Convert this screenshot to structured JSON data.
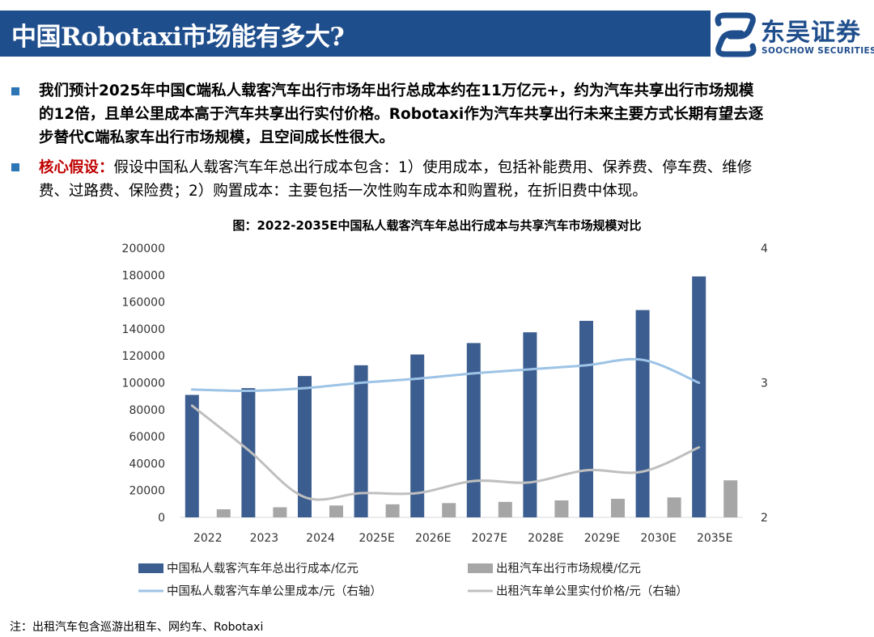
{
  "header": {
    "title": "中国Robotaxi市场能有多大?",
    "logo_cn": "东吴证券",
    "logo_en": "SOOCHOW SECURITIES",
    "bar_color": "#1f4e8c"
  },
  "bullets": [
    {
      "lines": [
        "我们预计2025年中国C端私人载客汽车出行市场年出行总成本约在11万亿元+，约为汽车共享出行市场规模",
        "的12倍，且单公里成本高于汽车共享出行实付价格。Robotaxi作为汽车共享出行未来主要方式长期有望去逐",
        "步替代C端私家车出行市场规模，且空间成长性很大。"
      ]
    },
    {
      "label": "核心假设：",
      "line1": "假设中国私人载客汽车年总出行成本包含：1）使用成本，包括补能费用、保养费、停车费、维修",
      "line2": "费、过路费、保险费；2）购置成本：主要包括一次性购车成本和购置税，在折旧费中体现。"
    }
  ],
  "chart_title": "图：2022-2035E中国私人载客汽车年总出行成本与共享汽车市场规模对比",
  "chart_data": {
    "type": "bar",
    "title": "图：2022-2035E中国私人载客汽车年总出行成本与共享汽车市场规模对比",
    "categories": [
      "2022",
      "2023",
      "2024",
      "2025E",
      "2026E",
      "2027E",
      "2028E",
      "2029E",
      "2030E",
      "2035E"
    ],
    "y_left": {
      "ticks": [
        "0",
        "20000",
        "40000",
        "60000",
        "80000",
        "100000",
        "120000",
        "140000",
        "160000",
        "180000",
        "200000"
      ],
      "ylim": [
        0,
        200000
      ]
    },
    "y_right": {
      "ticks": [
        "2",
        "3",
        "4"
      ],
      "ylim": [
        2,
        4
      ]
    },
    "series": [
      {
        "name": "中国私人载客汽车年总出行成本/亿元",
        "kind": "bar",
        "axis": "left",
        "color": "#3c5d8f",
        "values": [
          91000,
          96000,
          105000,
          113000,
          121000,
          129500,
          137500,
          146000,
          154000,
          179000
        ]
      },
      {
        "name": "出租汽车出行市场规模/亿元",
        "kind": "bar",
        "axis": "left",
        "color": "#a6a6a6",
        "values": [
          6000,
          7500,
          8800,
          9700,
          10600,
          11500,
          12600,
          13800,
          14800,
          27500
        ]
      },
      {
        "name": "中国私人载客汽车单公里成本/元（右轴）",
        "kind": "line",
        "axis": "right",
        "color": "#9dc3e6",
        "values": [
          2.95,
          2.94,
          2.96,
          3.0,
          3.03,
          3.07,
          3.1,
          3.13,
          3.17,
          3.0
        ]
      },
      {
        "name": "出租汽车单公里实付价格/元（右轴）",
        "kind": "line",
        "axis": "right",
        "color": "#bfbfbf",
        "values": [
          2.83,
          2.5,
          2.15,
          2.18,
          2.18,
          2.27,
          2.26,
          2.35,
          2.34,
          2.52
        ]
      }
    ],
    "legend_position": "bottom",
    "grid": false
  },
  "note": "注：出租汽车包含巡游出租车、网约车、Robotaxi",
  "colors": {
    "bullet": "#2e75b6",
    "highlight": "#c00000"
  }
}
